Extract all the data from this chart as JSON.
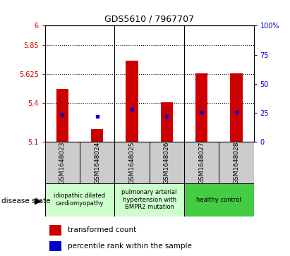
{
  "title": "GDS5610 / 7967707",
  "samples": [
    "GSM1648023",
    "GSM1648024",
    "GSM1648025",
    "GSM1648026",
    "GSM1648027",
    "GSM1648028"
  ],
  "transformed_count": [
    5.51,
    5.2,
    5.73,
    5.41,
    5.63,
    5.63
  ],
  "percentile_rank": [
    23,
    22,
    28,
    22,
    26,
    26
  ],
  "y_min": 5.1,
  "y_max": 6.0,
  "y_ticks_left": [
    5.1,
    5.4,
    5.625,
    5.85,
    6.0
  ],
  "y_tick_labels_left": [
    "5.1",
    "5.4",
    "5.625",
    "5.85",
    "6"
  ],
  "right_y_ticks": [
    0,
    25,
    50,
    75,
    100
  ],
  "right_y_tick_labels": [
    "0",
    "25",
    "50",
    "75",
    "100%"
  ],
  "dotted_lines": [
    5.4,
    5.625,
    5.85
  ],
  "bar_color": "#cc0000",
  "dot_color": "#0000cc",
  "disease_group_labels": [
    "idiopathic dilated\ncardiomyopathy",
    "pulmonary arterial\nhypertension with\nBMPR2 mutation",
    "healthy control"
  ],
  "disease_group_colors": [
    "#ccffcc",
    "#ccffcc",
    "#44cc44"
  ],
  "disease_group_ranges": [
    [
      0,
      2
    ],
    [
      2,
      4
    ],
    [
      4,
      6
    ]
  ],
  "left_label": "disease state",
  "legend_bar_label": "transformed count",
  "legend_dot_label": "percentile rank within the sample",
  "bar_width": 0.35,
  "tick_color_left": "#cc0000",
  "tick_color_right": "#0000cc",
  "sample_bg_color": "#cccccc",
  "plot_bg_color": "#ffffff",
  "fig_bg_color": "#ffffff"
}
